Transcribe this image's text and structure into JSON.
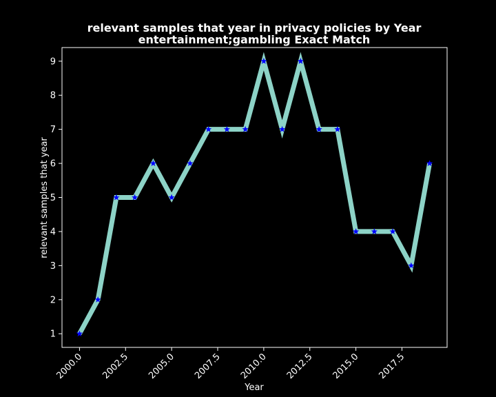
{
  "chart_data": {
    "type": "line",
    "title": [
      "relevant samples that year in privacy policies by Year",
      "entertainment;gambling Exact Match"
    ],
    "xlabel": "Year",
    "ylabel": "relevant samples that year",
    "x": [
      2000,
      2001,
      2002,
      2003,
      2004,
      2005,
      2006,
      2007,
      2008,
      2009,
      2010,
      2011,
      2012,
      2013,
      2014,
      2015,
      2016,
      2017,
      2018,
      2019
    ],
    "series": [
      {
        "values": [
          1,
          2,
          5,
          5,
          6,
          5,
          6,
          7,
          7,
          7,
          9,
          7,
          9,
          7,
          7,
          4,
          4,
          4,
          3,
          6
        ],
        "line_color": "#8dd3c7",
        "marker_color": "#0000ff",
        "marker": "star"
      }
    ],
    "xticks": [
      2000.0,
      2002.5,
      2005.0,
      2007.5,
      2010.0,
      2012.5,
      2015.0,
      2017.5
    ],
    "xtick_labels": [
      "2000.0",
      "2002.5",
      "2005.0",
      "2007.5",
      "2010.0",
      "2012.5",
      "2015.0",
      "2017.5"
    ],
    "yticks": [
      1,
      2,
      3,
      4,
      5,
      6,
      7,
      8,
      9
    ],
    "ytick_labels": [
      "1",
      "2",
      "3",
      "4",
      "5",
      "6",
      "7",
      "8",
      "9"
    ],
    "xlim": [
      1999.05,
      2019.95
    ],
    "ylim": [
      0.6,
      9.4
    ],
    "grid": false,
    "background": "#000000",
    "foreground": "#ffffff"
  }
}
